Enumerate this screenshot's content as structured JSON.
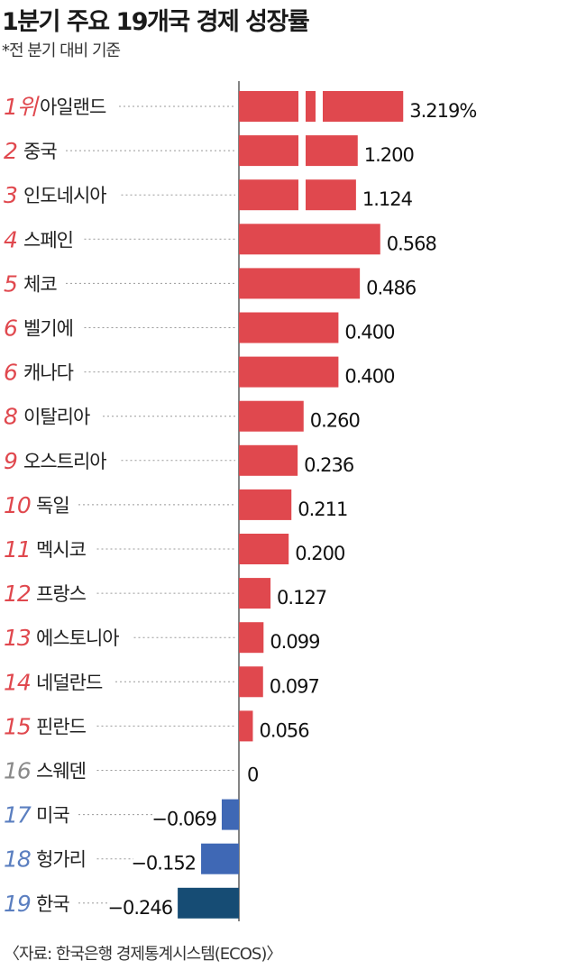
{
  "title": "1분기 주요 19개국 경제 성장률",
  "subtitle": "*전 분기 대비 기준",
  "source": "〈자료: 한국은행 경제통계시스템(ECOS)〉",
  "colors": {
    "positive": "#e0484e",
    "negative": "#3f68b5",
    "korea": "#164c74",
    "rank_red": "#e0484e",
    "rank_gray": "#8a8a8a",
    "rank_blue": "#5b7fc0"
  },
  "chart_data": {
    "type": "bar",
    "orientation": "horizontal",
    "axis_break": true,
    "categories": [
      "아일랜드",
      "중국",
      "인도네시아",
      "스페인",
      "체코",
      "벨기에",
      "캐나다",
      "이탈리아",
      "오스트리아",
      "독일",
      "멕시코",
      "프랑스",
      "에스토니아",
      "네덜란드",
      "핀란드",
      "스웨덴",
      "미국",
      "헝가리",
      "한국"
    ],
    "ranks": [
      "1위",
      "2",
      "3",
      "4",
      "5",
      "6",
      "6",
      "8",
      "9",
      "10",
      "11",
      "12",
      "13",
      "14",
      "15",
      "16",
      "17",
      "18",
      "19"
    ],
    "values": [
      3.219,
      1.2,
      1.124,
      0.568,
      0.486,
      0.4,
      0.4,
      0.26,
      0.236,
      0.211,
      0.2,
      0.127,
      0.099,
      0.097,
      0.056,
      0,
      -0.069,
      -0.152,
      -0.246
    ],
    "value_labels": [
      "3.219%",
      "1.200",
      "1.124",
      "0.568",
      "0.486",
      "0.400",
      "0.400",
      "0.260",
      "0.236",
      "0.211",
      "0.200",
      "0.127",
      "0.099",
      "0.097",
      "0.056",
      "0",
      "−0.069",
      "−0.152",
      "−0.246"
    ]
  }
}
